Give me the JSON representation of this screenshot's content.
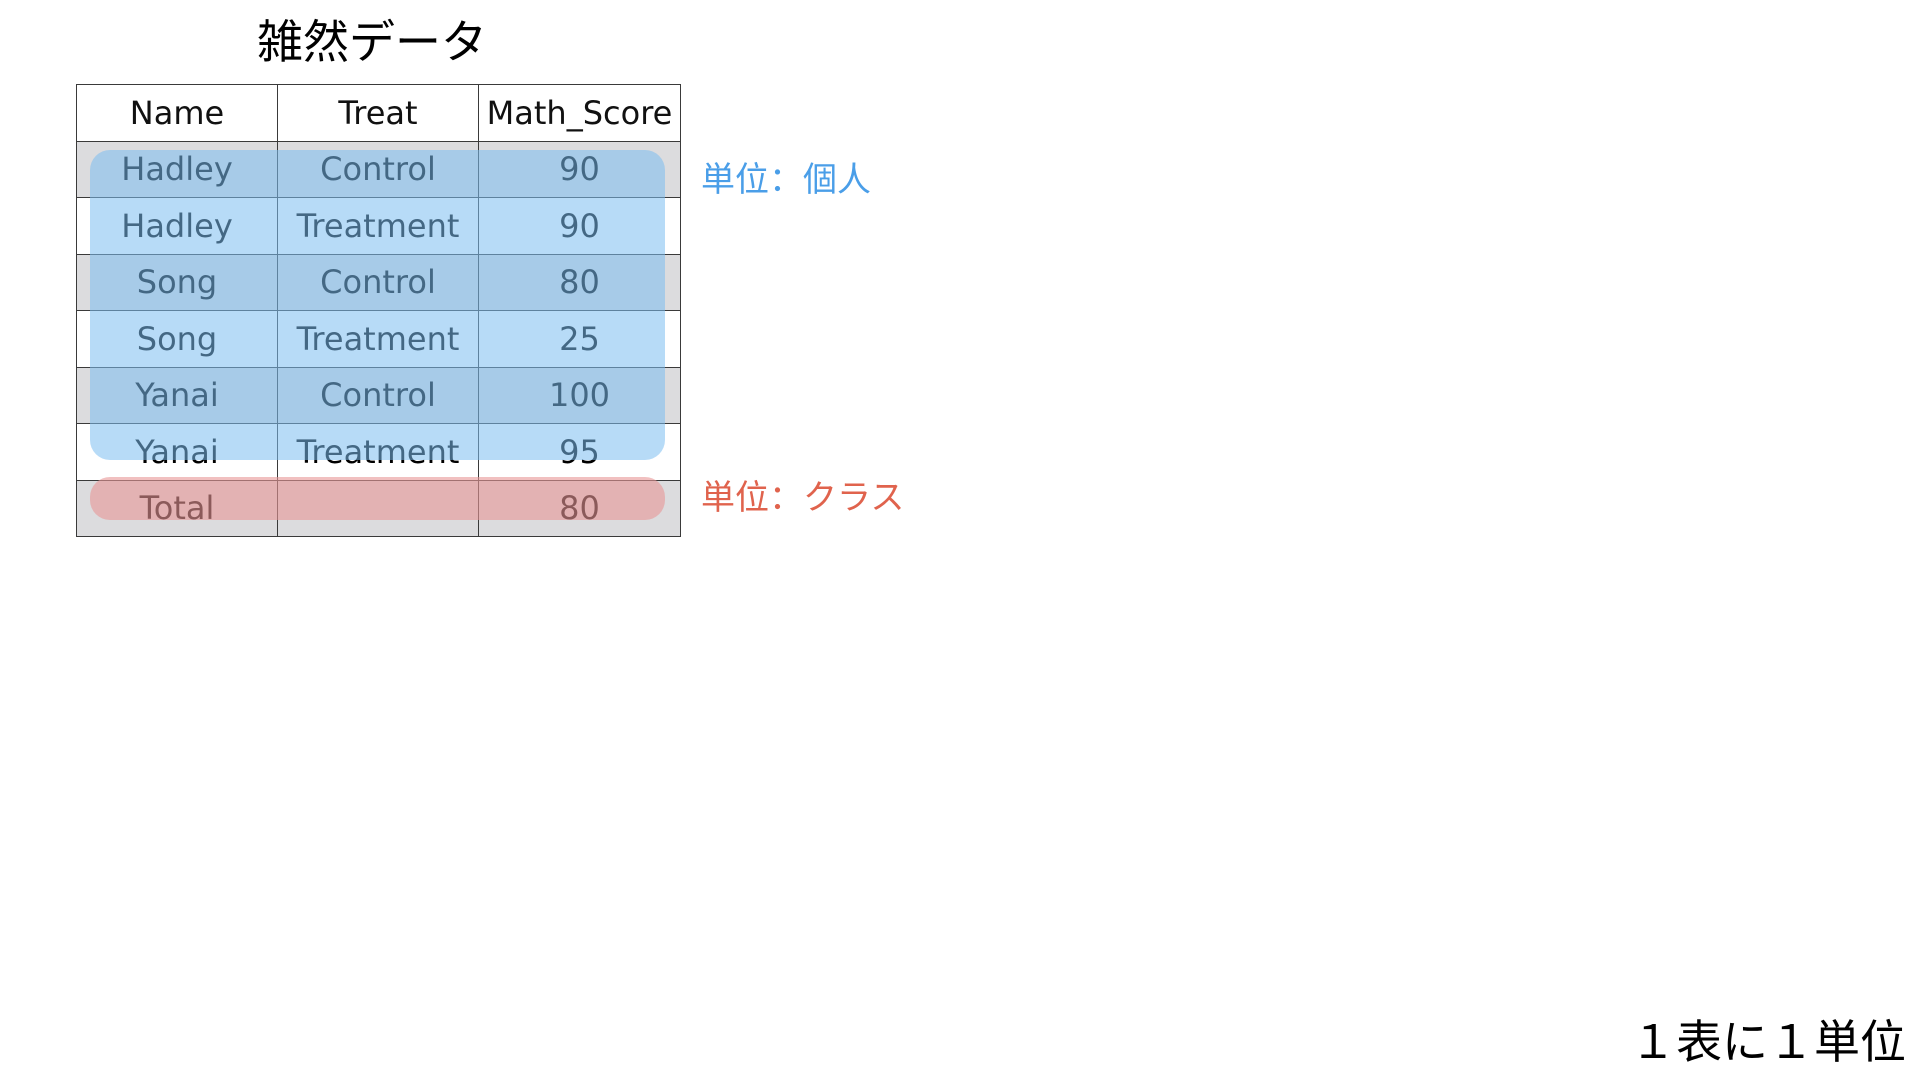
{
  "title": "雑然データ",
  "table": {
    "headers": [
      "Name",
      "Treat",
      "Math_Score"
    ],
    "rows": [
      [
        "Hadley",
        "Control",
        "90"
      ],
      [
        "Hadley",
        "Treatment",
        "90"
      ],
      [
        "Song",
        "Control",
        "80"
      ],
      [
        "Song",
        "Treatment",
        "25"
      ],
      [
        "Yanai",
        "Control",
        "100"
      ],
      [
        "Yanai",
        "Treatment",
        "95"
      ]
    ],
    "total_row": [
      "Total",
      "",
      "80"
    ]
  },
  "annotations": {
    "individual_label": "単位：個人",
    "class_label": "単位：クラス"
  },
  "footer": "１表に１単位",
  "colors": {
    "individual_highlight": "#7cbef0",
    "individual_text": "#4a9ee8",
    "class_highlight": "#e89696",
    "class_text": "#e0634d"
  }
}
